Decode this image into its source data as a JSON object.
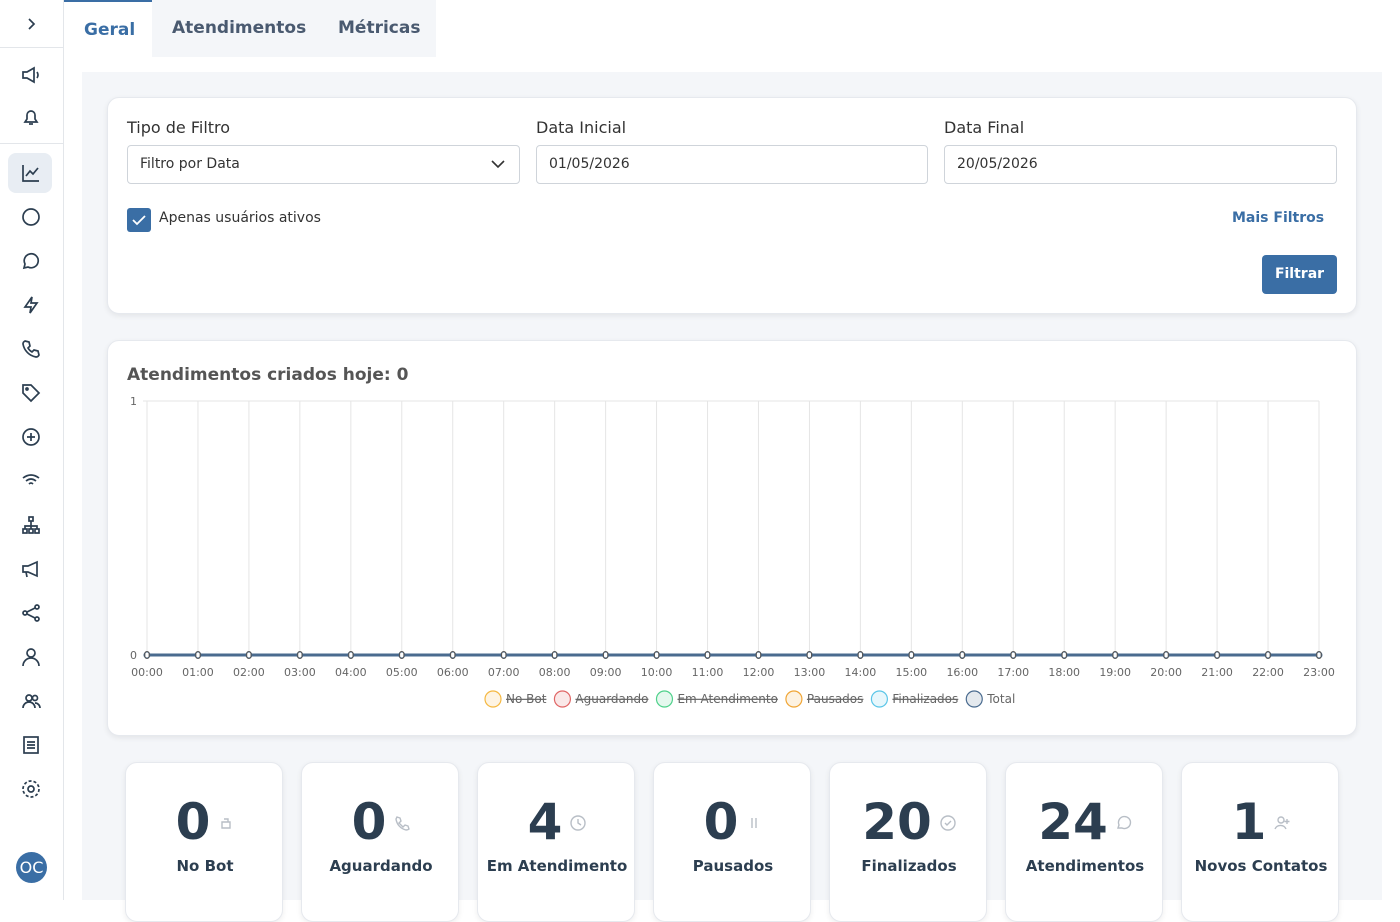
{
  "sidebar": {
    "avatar": "OC"
  },
  "tabs": [
    "Geral",
    "Atendimentos",
    "Métricas"
  ],
  "filters": {
    "type_label": "Tipo de Filtro",
    "type_value": "Filtro por Data",
    "start_label": "Data Inicial",
    "start_value": "01/05/2026",
    "end_label": "Data Final",
    "end_value": "20/05/2026",
    "active_only": "Apenas usuários ativos",
    "more": "Mais Filtros",
    "submit": "Filtrar"
  },
  "chart_data": {
    "type": "line",
    "title": "Atendimentos criados hoje: 0",
    "categories": [
      "00:00",
      "01:00",
      "02:00",
      "03:00",
      "04:00",
      "05:00",
      "06:00",
      "07:00",
      "08:00",
      "09:00",
      "10:00",
      "11:00",
      "12:00",
      "13:00",
      "14:00",
      "15:00",
      "16:00",
      "17:00",
      "18:00",
      "19:00",
      "20:00",
      "21:00",
      "22:00",
      "23:00"
    ],
    "ylim": [
      0,
      1
    ],
    "yticks": [
      0,
      1
    ],
    "grid": true,
    "series": [
      {
        "name": "No Bot",
        "color": "#f5b841",
        "hidden": true
      },
      {
        "name": "Aguardando",
        "color": "#e06666",
        "hidden": true
      },
      {
        "name": "Em Atendimento",
        "color": "#4fd18b",
        "hidden": true
      },
      {
        "name": "Pausados",
        "color": "#f0a535",
        "hidden": true
      },
      {
        "name": "Finalizados",
        "color": "#5bc6e8",
        "hidden": true
      },
      {
        "name": "Total",
        "color": "#4a6b8f",
        "values": [
          0,
          0,
          0,
          0,
          0,
          0,
          0,
          0,
          0,
          0,
          0,
          0,
          0,
          0,
          0,
          0,
          0,
          0,
          0,
          0,
          0,
          0,
          0,
          0
        ]
      }
    ]
  },
  "cards": [
    {
      "value": "0",
      "label": "No Bot"
    },
    {
      "value": "0",
      "label": "Aguardando"
    },
    {
      "value": "4",
      "label": "Em Atendimento"
    },
    {
      "value": "0",
      "label": "Pausados"
    },
    {
      "value": "20",
      "label": "Finalizados"
    },
    {
      "value": "24",
      "label": "Atendimentos"
    },
    {
      "value": "1",
      "label": "Novos Contatos"
    }
  ]
}
